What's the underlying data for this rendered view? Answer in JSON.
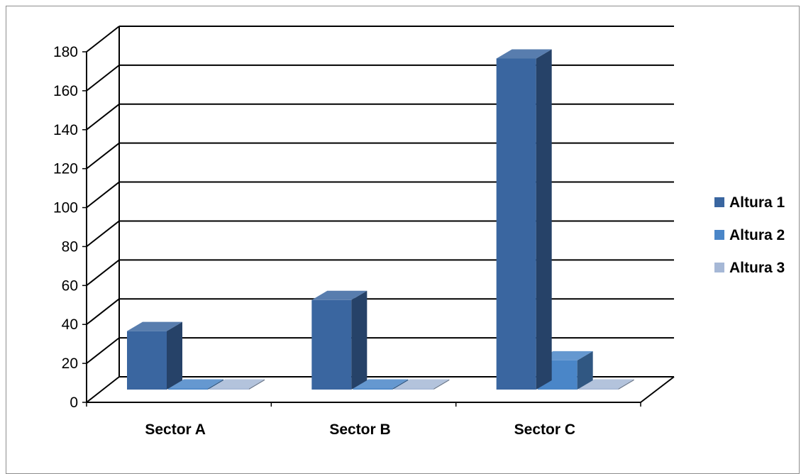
{
  "chart_data": {
    "type": "bar",
    "categories": [
      "Sector A",
      "Sector B",
      "Sector C"
    ],
    "series": [
      {
        "name": "Altura 1",
        "values": [
          30,
          46,
          170
        ],
        "color": "#3a66a0"
      },
      {
        "name": "Altura 2",
        "values": [
          0,
          0,
          15
        ],
        "color": "#4a86c8"
      },
      {
        "name": "Altura 3",
        "values": [
          0,
          0,
          0
        ],
        "color": "#a6b8d6"
      }
    ],
    "yticks": [
      "0",
      "20",
      "40",
      "60",
      "80",
      "100",
      "120",
      "140",
      "160",
      "180"
    ],
    "ylim": [
      0,
      180
    ],
    "grid": true,
    "legend": "right",
    "style": "3d-clustered-column"
  }
}
